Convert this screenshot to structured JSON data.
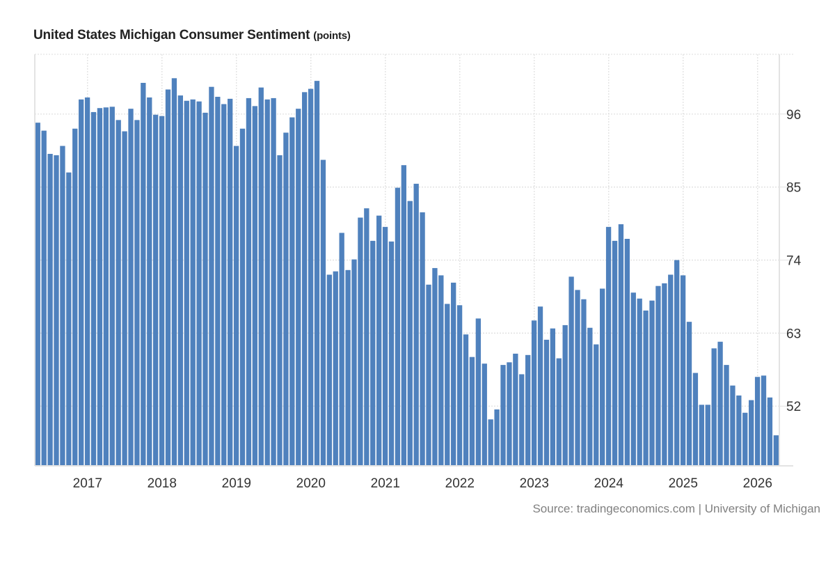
{
  "title": "United States Michigan Consumer Sentiment",
  "unit": "(points)",
  "source": "Source: tradingeconomics.com | University of Michigan",
  "colors": {
    "bar": "#4f81bd",
    "grid": "#dddddd",
    "axis": "#e3e3e3"
  },
  "chart_data": {
    "type": "bar",
    "title": "United States Michigan Consumer Sentiment (points)",
    "xlabel": "",
    "ylabel": "",
    "ylim": [
      43,
      105
    ],
    "yticks": [
      52,
      63,
      74,
      85,
      96
    ],
    "grid": true,
    "y_axis_side": "right",
    "start": "2016-05",
    "frequency": "monthly",
    "xtick_labels": [
      "2017",
      "2018",
      "2019",
      "2020",
      "2021",
      "2022",
      "2023",
      "2024",
      "2025",
      "2026"
    ],
    "xtick_index": [
      8,
      20,
      32,
      44,
      56,
      68,
      80,
      92,
      104,
      116
    ],
    "values": [
      94.7,
      93.5,
      90.0,
      89.8,
      91.2,
      87.2,
      93.8,
      98.2,
      98.5,
      96.3,
      96.9,
      97.0,
      97.1,
      95.1,
      93.4,
      96.8,
      95.1,
      100.7,
      98.5,
      95.9,
      95.7,
      99.7,
      101.4,
      98.8,
      98.0,
      98.2,
      97.9,
      96.2,
      100.1,
      98.6,
      97.5,
      98.3,
      91.2,
      93.8,
      98.4,
      97.2,
      100.0,
      98.2,
      98.4,
      89.8,
      93.2,
      95.5,
      96.8,
      99.3,
      99.8,
      101.0,
      89.1,
      71.8,
      72.3,
      78.1,
      72.5,
      74.1,
      80.4,
      81.8,
      76.9,
      80.7,
      79.0,
      76.8,
      84.9,
      88.3,
      82.9,
      85.5,
      81.2,
      70.3,
      72.8,
      71.7,
      67.4,
      70.6,
      67.2,
      62.8,
      59.4,
      65.2,
      58.4,
      50.0,
      51.5,
      58.2,
      58.6,
      59.9,
      56.8,
      59.7,
      64.9,
      67.0,
      62.0,
      63.7,
      59.2,
      64.2,
      71.5,
      69.5,
      68.1,
      63.8,
      61.3,
      69.7,
      79.0,
      76.9,
      79.4,
      77.2,
      69.1,
      68.2,
      66.4,
      67.9,
      70.1,
      70.5,
      71.8,
      74.0,
      71.7,
      64.7,
      57.0,
      52.2,
      52.2,
      60.7,
      61.7,
      58.2,
      55.1,
      53.6,
      51.0,
      52.9,
      56.4,
      56.6,
      53.3,
      47.6
    ]
  }
}
